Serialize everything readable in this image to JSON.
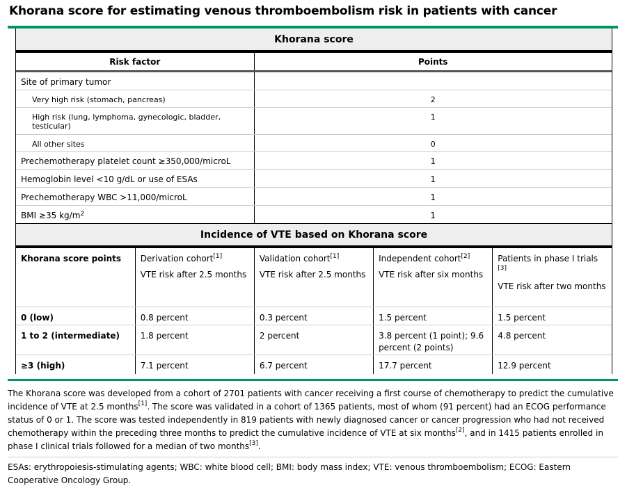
{
  "title": "Khorana score for estimating venous thromboembolism risk in patients with cancer",
  "table1": {
    "header": "Khorana score",
    "col_risk": "Risk factor",
    "col_points": "Points",
    "rows": [
      {
        "label": "Site of primary tumor",
        "points": "",
        "indent": false
      },
      {
        "label": "Very high risk (stomach, pancreas)",
        "points": "2",
        "indent": true
      },
      {
        "label": "High risk (lung, lymphoma, gynecologic, bladder, testicular)",
        "points": "1",
        "indent": true
      },
      {
        "label": "All other sites",
        "points": "0",
        "indent": true
      },
      {
        "label": "Prechemotherapy platelet count ≥350,000/microL",
        "points": "1",
        "indent": false
      },
      {
        "label": "Hemoglobin level <10 g/dL or use of ESAs",
        "points": "1",
        "indent": false
      },
      {
        "label": "Prechemotherapy WBC >11,000/microL",
        "points": "1",
        "indent": false
      },
      {
        "label": "BMI ≥35 kg/m",
        "label_sup": "2",
        "points": "1",
        "indent": false
      }
    ]
  },
  "table2": {
    "header": "Incidence of VTE based on Khorana score",
    "cols": [
      {
        "title": "Khorana score points",
        "ref": "",
        "sub": ""
      },
      {
        "title": "Derivation cohort",
        "ref": "[1]",
        "sub": "VTE risk after 2.5 months"
      },
      {
        "title": "Validation cohort",
        "ref": "[1]",
        "sub": "VTE risk after 2.5 months"
      },
      {
        "title": "Independent cohort",
        "ref": "[2]",
        "sub": "VTE risk after six months"
      },
      {
        "title": "Patients in phase I trials ",
        "ref": "[3]",
        "sub": "VTE risk after two months"
      }
    ],
    "rows": [
      [
        "0 (low)",
        "0.8 percent",
        "0.3 percent",
        "1.5 percent",
        "1.5 percent"
      ],
      [
        "1 to 2 (intermediate)",
        "1.8 percent",
        "2 percent",
        "3.8 percent (1 point); 9.6 percent (2 points)",
        "4.8 percent"
      ],
      [
        "≥3 (high)",
        "7.1 percent",
        "6.7 percent",
        "17.7 percent",
        "12.9 percent"
      ]
    ]
  },
  "footnote": {
    "p1": "The Khorana score was developed from a cohort of 2701 patients with cancer receiving a first course of chemotherapy to predict the cumulative incidence of VTE at 2.5 months",
    "r1": "[1]",
    "p2": ". The score was validated in a cohort of 1365 patients, most of whom (91 percent) had an ECOG performance status of 0 or 1. The score was tested independently in 819 patients with newly diagnosed cancer or cancer progression who had not received chemotherapy within the preceding three months to predict the cumulative incidence of VTE at six months",
    "r2": "[2]",
    "p3": ", and in 1415 patients enrolled in phase I clinical trials followed for a median of two months",
    "r3": "[3]",
    "p4": ".",
    "abbrev": "ESAs: erythropoiesis-stimulating agents; WBC: white blood cell; BMI: body mass index; VTE: venous thromboembolism; ECOG: Eastern Cooperative Oncology Group."
  },
  "colors": {
    "accent": "#00945f",
    "header_bg": "#eeeeee"
  }
}
